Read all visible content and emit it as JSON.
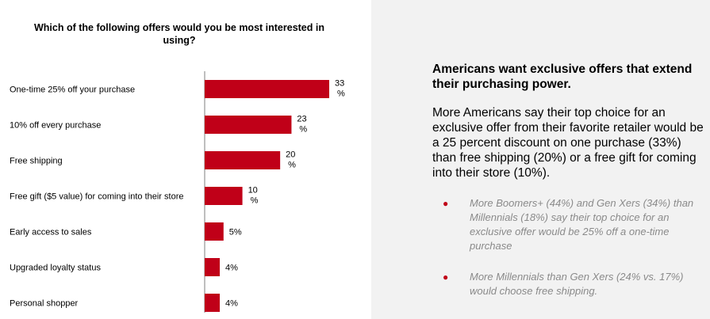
{
  "chart_data": {
    "type": "bar",
    "orientation": "horizontal",
    "title": "Which of the following offers would you be most interested in using?",
    "categories": [
      "One-time 25% off your purchase",
      "10% off every purchase",
      "Free shipping",
      "Free gift ($5 value) for coming into their store",
      "Early access to sales",
      "Upgraded loyalty status",
      "Personal shopper"
    ],
    "values": [
      33,
      23,
      20,
      10,
      5,
      4,
      4
    ],
    "data_labels": [
      [
        "33",
        "%"
      ],
      [
        "23",
        "%"
      ],
      [
        "20",
        "%"
      ],
      [
        "10",
        "%"
      ],
      [
        "5%"
      ],
      [
        "4%"
      ],
      [
        "4%"
      ]
    ],
    "xlim": [
      0,
      33
    ],
    "grid": false,
    "bar_color": "#c00018"
  },
  "text_panel": {
    "heading": "Americans want exclusive offers that extend their purchasing power.",
    "body": "More Americans say their top choice for an exclusive offer from their favorite retailer would be a 25 percent discount on one purchase (33%) than free shipping (20%) or a free gift for coming into their store (10%).",
    "bullets": [
      "More Boomers+ (44%) and Gen Xers (34%) than Millennials (18%) say their top choice for an exclusive offer would be 25% off a one-time purchase",
      "More Millennials than Gen Xers (24% vs. 17%) would choose free shipping."
    ],
    "bullet_glyph": "●"
  }
}
